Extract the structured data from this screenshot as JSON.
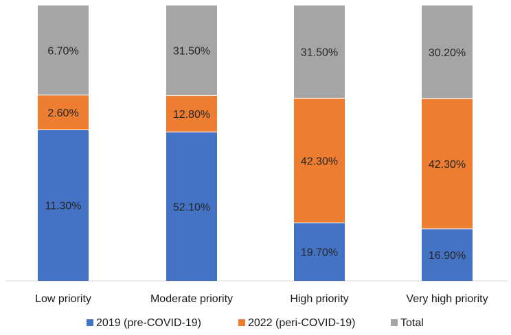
{
  "chart_data": {
    "type": "bar",
    "stacked": true,
    "normalized": true,
    "title": "",
    "xlabel": "",
    "ylabel": "",
    "categories": [
      "Low priority",
      "Moderate priority",
      "High priority",
      "Very high priority"
    ],
    "series": [
      {
        "name": "2019 (pre-COVID-19)",
        "color": "#4472C4",
        "values": [
          11.3,
          52.1,
          19.7,
          16.9
        ],
        "labels": [
          "11.30%",
          "52.10%",
          "19.70%",
          "16.90%"
        ]
      },
      {
        "name": "2022 (peri-COVID-19)",
        "color": "#ED7D31",
        "values": [
          2.6,
          12.8,
          42.3,
          42.3
        ],
        "labels": [
          "2.60%",
          "12.80%",
          "42.30%",
          "42.30%"
        ]
      },
      {
        "name": "Total",
        "color": "#A5A5A5",
        "values": [
          6.7,
          31.5,
          31.5,
          30.2
        ],
        "labels": [
          "6.70%",
          "31.50%",
          "31.50%",
          "30.20%"
        ]
      }
    ],
    "legend_position": "bottom",
    "grid": false
  }
}
